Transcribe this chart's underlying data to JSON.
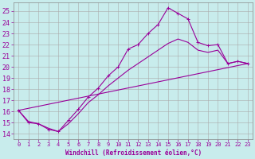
{
  "xlabel": "Windchill (Refroidissement éolien,°C)",
  "bg_color": "#c8ecec",
  "line_color": "#990099",
  "grid_color": "#aaaaaa",
  "xlim": [
    -0.5,
    23.5
  ],
  "ylim": [
    13.5,
    25.8
  ],
  "xticks": [
    0,
    1,
    2,
    3,
    4,
    5,
    6,
    7,
    8,
    9,
    10,
    11,
    12,
    13,
    14,
    15,
    16,
    17,
    18,
    19,
    20,
    21,
    22,
    23
  ],
  "yticks": [
    14,
    15,
    16,
    17,
    18,
    19,
    20,
    21,
    22,
    23,
    24,
    25
  ],
  "curve1_x": [
    0,
    1,
    2,
    3,
    4,
    5,
    6,
    7,
    8,
    9,
    10,
    11,
    12,
    13,
    14,
    15,
    16,
    17,
    18,
    19,
    20,
    21,
    22,
    23
  ],
  "curve1_y": [
    16.1,
    15.0,
    14.9,
    14.4,
    14.2,
    15.2,
    16.2,
    17.3,
    18.1,
    19.2,
    20.0,
    21.6,
    22.0,
    23.0,
    23.8,
    25.3,
    24.8,
    24.3,
    22.2,
    21.9,
    22.0,
    20.3,
    20.5,
    20.3
  ],
  "curve2_x": [
    0,
    23
  ],
  "curve2_y": [
    16.1,
    20.3
  ],
  "curve3_x": [
    0,
    1,
    2,
    3,
    4,
    5,
    6,
    7,
    8,
    9,
    10,
    11,
    12,
    13,
    14,
    15,
    16,
    17,
    18,
    19,
    20,
    21,
    22,
    23
  ],
  "curve3_y": [
    16.1,
    15.1,
    14.9,
    14.5,
    14.2,
    14.9,
    15.8,
    16.8,
    17.5,
    18.3,
    19.0,
    19.7,
    20.3,
    20.9,
    21.5,
    22.1,
    22.5,
    22.2,
    21.5,
    21.3,
    21.5,
    20.3,
    20.5,
    20.3
  ]
}
